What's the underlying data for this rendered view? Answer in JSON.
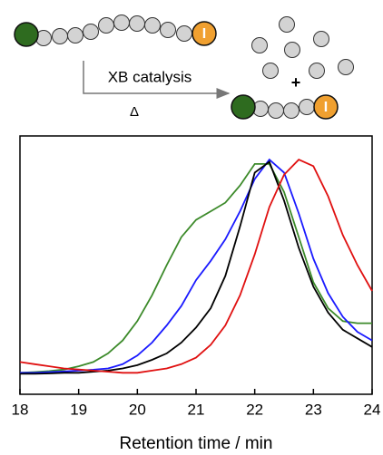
{
  "scheme": {
    "catalyst_label": "XB catalysis",
    "heat_label": "Δ",
    "plus": "+",
    "end_group_left": "I",
    "end_group_right": "I"
  },
  "chart_data": {
    "type": "line",
    "xlabel": "Retention time / min",
    "x": [
      18,
      18.25,
      18.5,
      18.75,
      19,
      19.25,
      19.5,
      19.75,
      20,
      20.25,
      20.5,
      20.75,
      21,
      21.25,
      21.5,
      21.75,
      22,
      22.25,
      22.5,
      22.75,
      23,
      23.25,
      23.5,
      23.75,
      24
    ],
    "xlim": [
      18,
      24
    ],
    "xticks": [
      18,
      19,
      20,
      21,
      22,
      23,
      24
    ],
    "ylim": [
      -0.1,
      1.1
    ],
    "series": [
      {
        "color": "#3c8a2a",
        "values": [
          0,
          0.003,
          0.008,
          0.015,
          0.03,
          0.05,
          0.09,
          0.15,
          0.24,
          0.36,
          0.5,
          0.63,
          0.71,
          0.75,
          0.79,
          0.87,
          0.97,
          0.97,
          0.84,
          0.63,
          0.42,
          0.3,
          0.24,
          0.23,
          0.23
        ]
      },
      {
        "color": "#1a1aff",
        "values": [
          0,
          0,
          0.003,
          0.006,
          0.01,
          0.014,
          0.02,
          0.04,
          0.08,
          0.14,
          0.22,
          0.31,
          0.43,
          0.52,
          0.62,
          0.75,
          0.9,
          0.99,
          0.93,
          0.74,
          0.53,
          0.37,
          0.26,
          0.19,
          0.15
        ]
      },
      {
        "color": "#000000",
        "values": [
          -0.005,
          -0.005,
          -0.003,
          0,
          0,
          0.005,
          0.01,
          0.02,
          0.035,
          0.06,
          0.09,
          0.14,
          0.21,
          0.3,
          0.45,
          0.68,
          0.93,
          0.98,
          0.8,
          0.58,
          0.4,
          0.28,
          0.2,
          0.16,
          0.12
        ]
      },
      {
        "color": "#e01010",
        "values": [
          0.05,
          0.04,
          0.03,
          0.02,
          0.015,
          0.01,
          0.005,
          0,
          0,
          0.01,
          0.02,
          0.04,
          0.07,
          0.13,
          0.22,
          0.36,
          0.55,
          0.77,
          0.92,
          0.99,
          0.96,
          0.82,
          0.64,
          0.5,
          0.38
        ]
      }
    ]
  }
}
